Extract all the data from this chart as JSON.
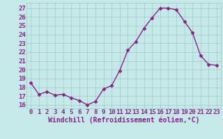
{
  "x": [
    0,
    1,
    2,
    3,
    4,
    5,
    6,
    7,
    8,
    9,
    10,
    11,
    12,
    13,
    14,
    15,
    16,
    17,
    18,
    19,
    20,
    21,
    22,
    23
  ],
  "y": [
    18.5,
    17.2,
    17.5,
    17.1,
    17.2,
    16.8,
    16.5,
    16.0,
    16.4,
    17.8,
    18.2,
    19.9,
    22.2,
    23.2,
    24.7,
    25.9,
    27.0,
    27.0,
    26.8,
    25.5,
    24.2,
    21.6,
    20.6,
    20.5
  ],
  "line_color": "#882288",
  "marker": "D",
  "markersize": 2.5,
  "linewidth": 1.0,
  "background_color": "#c5e8e8",
  "grid_color": "#a0c8c8",
  "xlabel": "Windchill (Refroidissement éolien,°C)",
  "ylabel_ticks": [
    16,
    17,
    18,
    19,
    20,
    21,
    22,
    23,
    24,
    25,
    26,
    27
  ],
  "xticks": [
    0,
    1,
    2,
    3,
    4,
    5,
    6,
    7,
    8,
    9,
    10,
    11,
    12,
    13,
    14,
    15,
    16,
    17,
    18,
    19,
    20,
    21,
    22,
    23
  ],
  "xlim": [
    -0.5,
    23.5
  ],
  "ylim": [
    15.6,
    27.6
  ],
  "xlabel_fontsize": 7,
  "tick_fontsize": 6.5,
  "tick_color": "#882288",
  "xlabel_color": "#882288"
}
